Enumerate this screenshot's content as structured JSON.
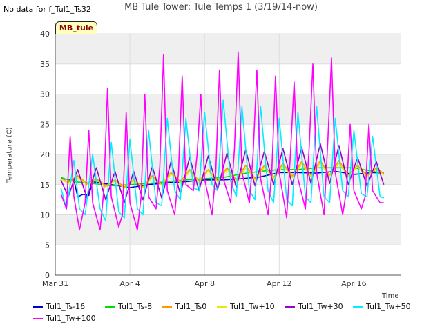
{
  "header": {
    "no_data_note": "No data for f_Tul1_Ts32",
    "title": "MB Tule Tower: Tule Temps 1 (3/19/14-now)",
    "site_badge": "MB_tule"
  },
  "chart_data": {
    "type": "line",
    "title": "MB Tule Tower: Tule Temps 1 (3/19/14-now)",
    "xlabel": "Time",
    "ylabel": "Temperature (C)",
    "xlim": [
      0,
      18.5
    ],
    "ylim": [
      0,
      40
    ],
    "yticks": [
      0,
      5,
      10,
      15,
      20,
      25,
      30,
      35,
      40
    ],
    "xticks": [
      {
        "day": 0,
        "label": "Mar 31"
      },
      {
        "day": 4,
        "label": "Apr 4"
      },
      {
        "day": 8,
        "label": "Apr 8"
      },
      {
        "day": 12,
        "label": "Apr 12"
      },
      {
        "day": 16,
        "label": "Apr 16"
      }
    ],
    "grid": true,
    "shaded_bands": true,
    "x_units": "days since Mar 31",
    "series": [
      {
        "name": "Tul1_Ts-16",
        "color": "#0000cc",
        "x": [
          0.3,
          1,
          1.2,
          1.5,
          1.8,
          2,
          3,
          4,
          5,
          6,
          7,
          8,
          9,
          9.6,
          10,
          11,
          12,
          13,
          14,
          15,
          16,
          17,
          17.6
        ],
        "y": [
          16,
          15.8,
          13,
          13.4,
          13.2,
          15.5,
          15,
          14.5,
          15,
          15.3,
          15.5,
          15.8,
          15.8,
          15.9,
          16,
          16.3,
          17,
          17,
          16.9,
          17.2,
          16.7,
          17,
          16.9
        ]
      },
      {
        "name": "Tul1_Ts-8",
        "color": "#00dd00",
        "x": [
          0.3,
          1,
          2,
          3,
          4,
          5,
          6,
          7,
          8,
          9,
          10,
          11,
          12,
          13,
          14,
          15,
          16,
          17,
          17.6
        ],
        "y": [
          16.2,
          15.5,
          15.2,
          14.8,
          15,
          15.2,
          15.5,
          15.8,
          16,
          16.2,
          16.8,
          17.2,
          17.5,
          17.5,
          17.8,
          17.8,
          17.8,
          17.2,
          16.8
        ]
      },
      {
        "name": "Tul1_Ts0",
        "color": "#ff9900",
        "x": [
          0.3,
          0.7,
          1.2,
          1.7,
          2.2,
          2.7,
          3.2,
          3.7,
          4.2,
          4.7,
          5.2,
          5.7,
          6.2,
          6.7,
          7.2,
          7.7,
          8.2,
          8.7,
          9.2,
          9.7,
          10.2,
          10.7,
          11.2,
          11.7,
          12.2,
          12.7,
          13.2,
          13.7,
          14.2,
          14.7,
          15.2,
          15.7,
          16.2,
          16.7,
          17.2,
          17.6
        ],
        "y": [
          16,
          15.4,
          16.5,
          15.2,
          16,
          14.8,
          15.8,
          14.6,
          15.8,
          14.6,
          16.5,
          15,
          17,
          15.5,
          17.5,
          15.6,
          17.5,
          15.6,
          17.8,
          15.8,
          18.2,
          16,
          18.2,
          16.2,
          18.5,
          16.4,
          18.8,
          16.5,
          19,
          16.6,
          19,
          16.6,
          18.2,
          16.5,
          17.8,
          16.8
        ]
      },
      {
        "name": "Tul1_Tw+10",
        "color": "#e8e800",
        "x": [
          0.3,
          0.7,
          1.2,
          1.7,
          2.2,
          2.7,
          3.2,
          3.7,
          4.2,
          4.7,
          5.2,
          5.7,
          6.2,
          6.7,
          7.2,
          7.7,
          8.2,
          8.7,
          9.2,
          9.7,
          10.2,
          10.7,
          11.2,
          11.7,
          12.2,
          12.7,
          13.2,
          13.7,
          14.2,
          14.7,
          15.2,
          15.7,
          16.2,
          16.7,
          17.2,
          17.6
        ],
        "y": [
          16,
          15.2,
          16.2,
          15,
          15.8,
          14.6,
          15.6,
          14.4,
          15.6,
          14.5,
          16.2,
          14.9,
          16.8,
          15.3,
          17.2,
          15.4,
          17.3,
          15.5,
          17.5,
          15.6,
          17.8,
          15.8,
          17.9,
          16,
          18.1,
          16.2,
          18.4,
          16.3,
          18.6,
          16.4,
          18.6,
          16.4,
          18,
          16.3,
          17.6,
          16.6
        ]
      },
      {
        "name": "Tul1_Tw+30",
        "color": "#9900cc",
        "x": [
          0.3,
          0.7,
          1.2,
          1.7,
          2.2,
          2.7,
          3.2,
          3.7,
          4.2,
          4.7,
          5.2,
          5.7,
          6.2,
          6.7,
          7.2,
          7.7,
          8.2,
          8.7,
          9.2,
          9.7,
          10.2,
          10.7,
          11.2,
          11.7,
          12.2,
          12.7,
          13.2,
          13.7,
          14.2,
          14.7,
          15.2,
          15.7,
          16.2,
          16.7,
          17.2,
          17.6
        ],
        "y": [
          15.8,
          13,
          17.5,
          12.8,
          17.8,
          12.5,
          17.2,
          12,
          17.2,
          12.5,
          18,
          12.8,
          18.8,
          13.5,
          19.5,
          14,
          19.8,
          14.2,
          20.2,
          14.5,
          20.8,
          14.8,
          20.5,
          15,
          21,
          15,
          21.2,
          15.2,
          21.8,
          15.2,
          21.5,
          15,
          19.5,
          14.8,
          18.8,
          15
        ]
      },
      {
        "name": "Tul1_Tw+50",
        "color": "#00eeff",
        "x": [
          0.3,
          0.6,
          1,
          1.3,
          1.6,
          2,
          2.4,
          2.7,
          3,
          3.4,
          3.7,
          4,
          4.4,
          4.7,
          5,
          5.4,
          5.7,
          6,
          6.4,
          6.7,
          7,
          7.4,
          7.7,
          8,
          8.4,
          8.7,
          9,
          9.4,
          9.7,
          10,
          10.4,
          10.7,
          11,
          11.4,
          11.7,
          12,
          12.4,
          12.7,
          13,
          13.4,
          13.7,
          14,
          14.4,
          14.7,
          15,
          15.4,
          15.7,
          16,
          16.4,
          16.7,
          17,
          17.4,
          17.6
        ],
        "y": [
          14.5,
          11,
          19,
          11,
          10,
          20,
          11,
          9,
          22,
          10.5,
          9.5,
          22.5,
          11,
          10,
          24,
          12,
          11.5,
          26,
          14,
          12.5,
          26,
          14.5,
          14,
          27,
          15,
          14,
          29,
          15.5,
          13,
          28,
          14,
          12.5,
          28,
          14,
          12,
          26,
          12.5,
          11.5,
          27,
          13,
          12,
          28,
          13,
          12,
          26,
          14,
          13,
          24,
          13.5,
          13,
          23,
          13,
          12.8
        ]
      },
      {
        "name": "Tul1_Tw+100",
        "color": "#ff00ff",
        "x": [
          0.3,
          0.6,
          0.8,
          1,
          1.3,
          1.6,
          1.8,
          2,
          2.4,
          2.6,
          2.8,
          3,
          3.4,
          3.6,
          3.8,
          4,
          4.4,
          4.6,
          4.8,
          5,
          5.4,
          5.6,
          5.8,
          6,
          6.4,
          6.6,
          6.8,
          7,
          7.4,
          7.6,
          7.8,
          8,
          8.4,
          8.6,
          8.8,
          9,
          9.4,
          9.6,
          9.8,
          10,
          10.4,
          10.6,
          10.8,
          11,
          11.4,
          11.6,
          11.8,
          12,
          12.4,
          12.6,
          12.8,
          13,
          13.4,
          13.6,
          13.8,
          14,
          14.4,
          14.6,
          14.8,
          15,
          15.4,
          15.6,
          15.8,
          16,
          16.4,
          16.6,
          16.8,
          17,
          17.4,
          17.6
        ],
        "y": [
          13.5,
          11,
          23,
          13,
          7.5,
          12,
          24,
          12,
          7.5,
          14,
          31,
          13,
          8,
          10,
          27,
          12,
          7.5,
          13,
          30,
          13,
          11,
          18,
          36.5,
          14,
          10,
          17,
          33,
          15,
          14,
          20,
          30,
          16,
          10,
          17,
          34,
          16,
          12,
          21,
          37,
          17,
          12,
          20,
          34,
          16,
          10,
          17,
          33,
          17,
          9.5,
          20,
          32,
          16,
          11,
          21,
          35,
          17,
          10,
          22,
          36,
          17,
          10,
          14,
          25,
          14,
          11,
          13,
          25,
          14,
          12,
          12
        ]
      }
    ]
  },
  "legend": {
    "items": [
      {
        "label": "Tul1_Ts-16",
        "color": "#0000cc"
      },
      {
        "label": "Tul1_Ts-8",
        "color": "#00dd00"
      },
      {
        "label": "Tul1_Ts0",
        "color": "#ff9900"
      },
      {
        "label": "Tul1_Tw+10",
        "color": "#e8e800"
      },
      {
        "label": "Tul1_Tw+30",
        "color": "#9900cc"
      },
      {
        "label": "Tul1_Tw+50",
        "color": "#00eeff"
      },
      {
        "label": "Tul1_Tw+100",
        "color": "#ff00ff"
      }
    ]
  }
}
